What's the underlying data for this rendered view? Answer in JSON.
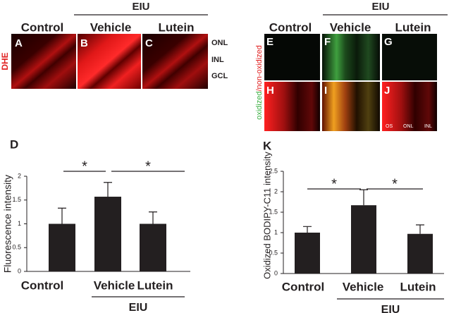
{
  "images_left": {
    "group": "EIU",
    "columns": [
      "Control",
      "Vehicle",
      "Lutein"
    ],
    "panels": [
      "A",
      "B",
      "C"
    ],
    "stain": "DHE",
    "layers": [
      "ONL",
      "INL",
      "GCL"
    ]
  },
  "images_right": {
    "group": "EIU",
    "columns": [
      "Control",
      "Vehicle",
      "Lutein"
    ],
    "panels": [
      "E",
      "F",
      "G",
      "H",
      "I",
      "J"
    ],
    "stain": [
      "oxidized",
      "/non-oxidized"
    ],
    "layers": [
      "OS",
      "ONL",
      "INL"
    ]
  },
  "chart_data": [
    {
      "type": "bar",
      "panel": "D",
      "ylabel": "Fluorescence intensity",
      "categories": [
        "Control",
        "Vehicle",
        "Lutein"
      ],
      "values": [
        1.0,
        1.57,
        1.0
      ],
      "errors": [
        0.33,
        0.3,
        0.25
      ],
      "color": "#231f20",
      "ylim": [
        0,
        2
      ],
      "yticks": [
        0,
        0.5,
        1,
        1.5,
        2
      ],
      "group": "EIU",
      "significance": [
        "*",
        "*"
      ]
    },
    {
      "type": "bar",
      "panel": "K",
      "ylabel": "Oxidized BODIPY-C11 intensity",
      "categories": [
        "Control",
        "Vehicle",
        "Lutein"
      ],
      "values": [
        1.0,
        1.67,
        0.97
      ],
      "errors": [
        0.15,
        0.38,
        0.22
      ],
      "color": "#231f20",
      "ylim": [
        0,
        2.5
      ],
      "yticks": [
        0,
        0.5,
        1,
        1.5,
        2,
        2.5
      ],
      "group": "EIU",
      "significance": [
        "*",
        "*"
      ]
    }
  ]
}
